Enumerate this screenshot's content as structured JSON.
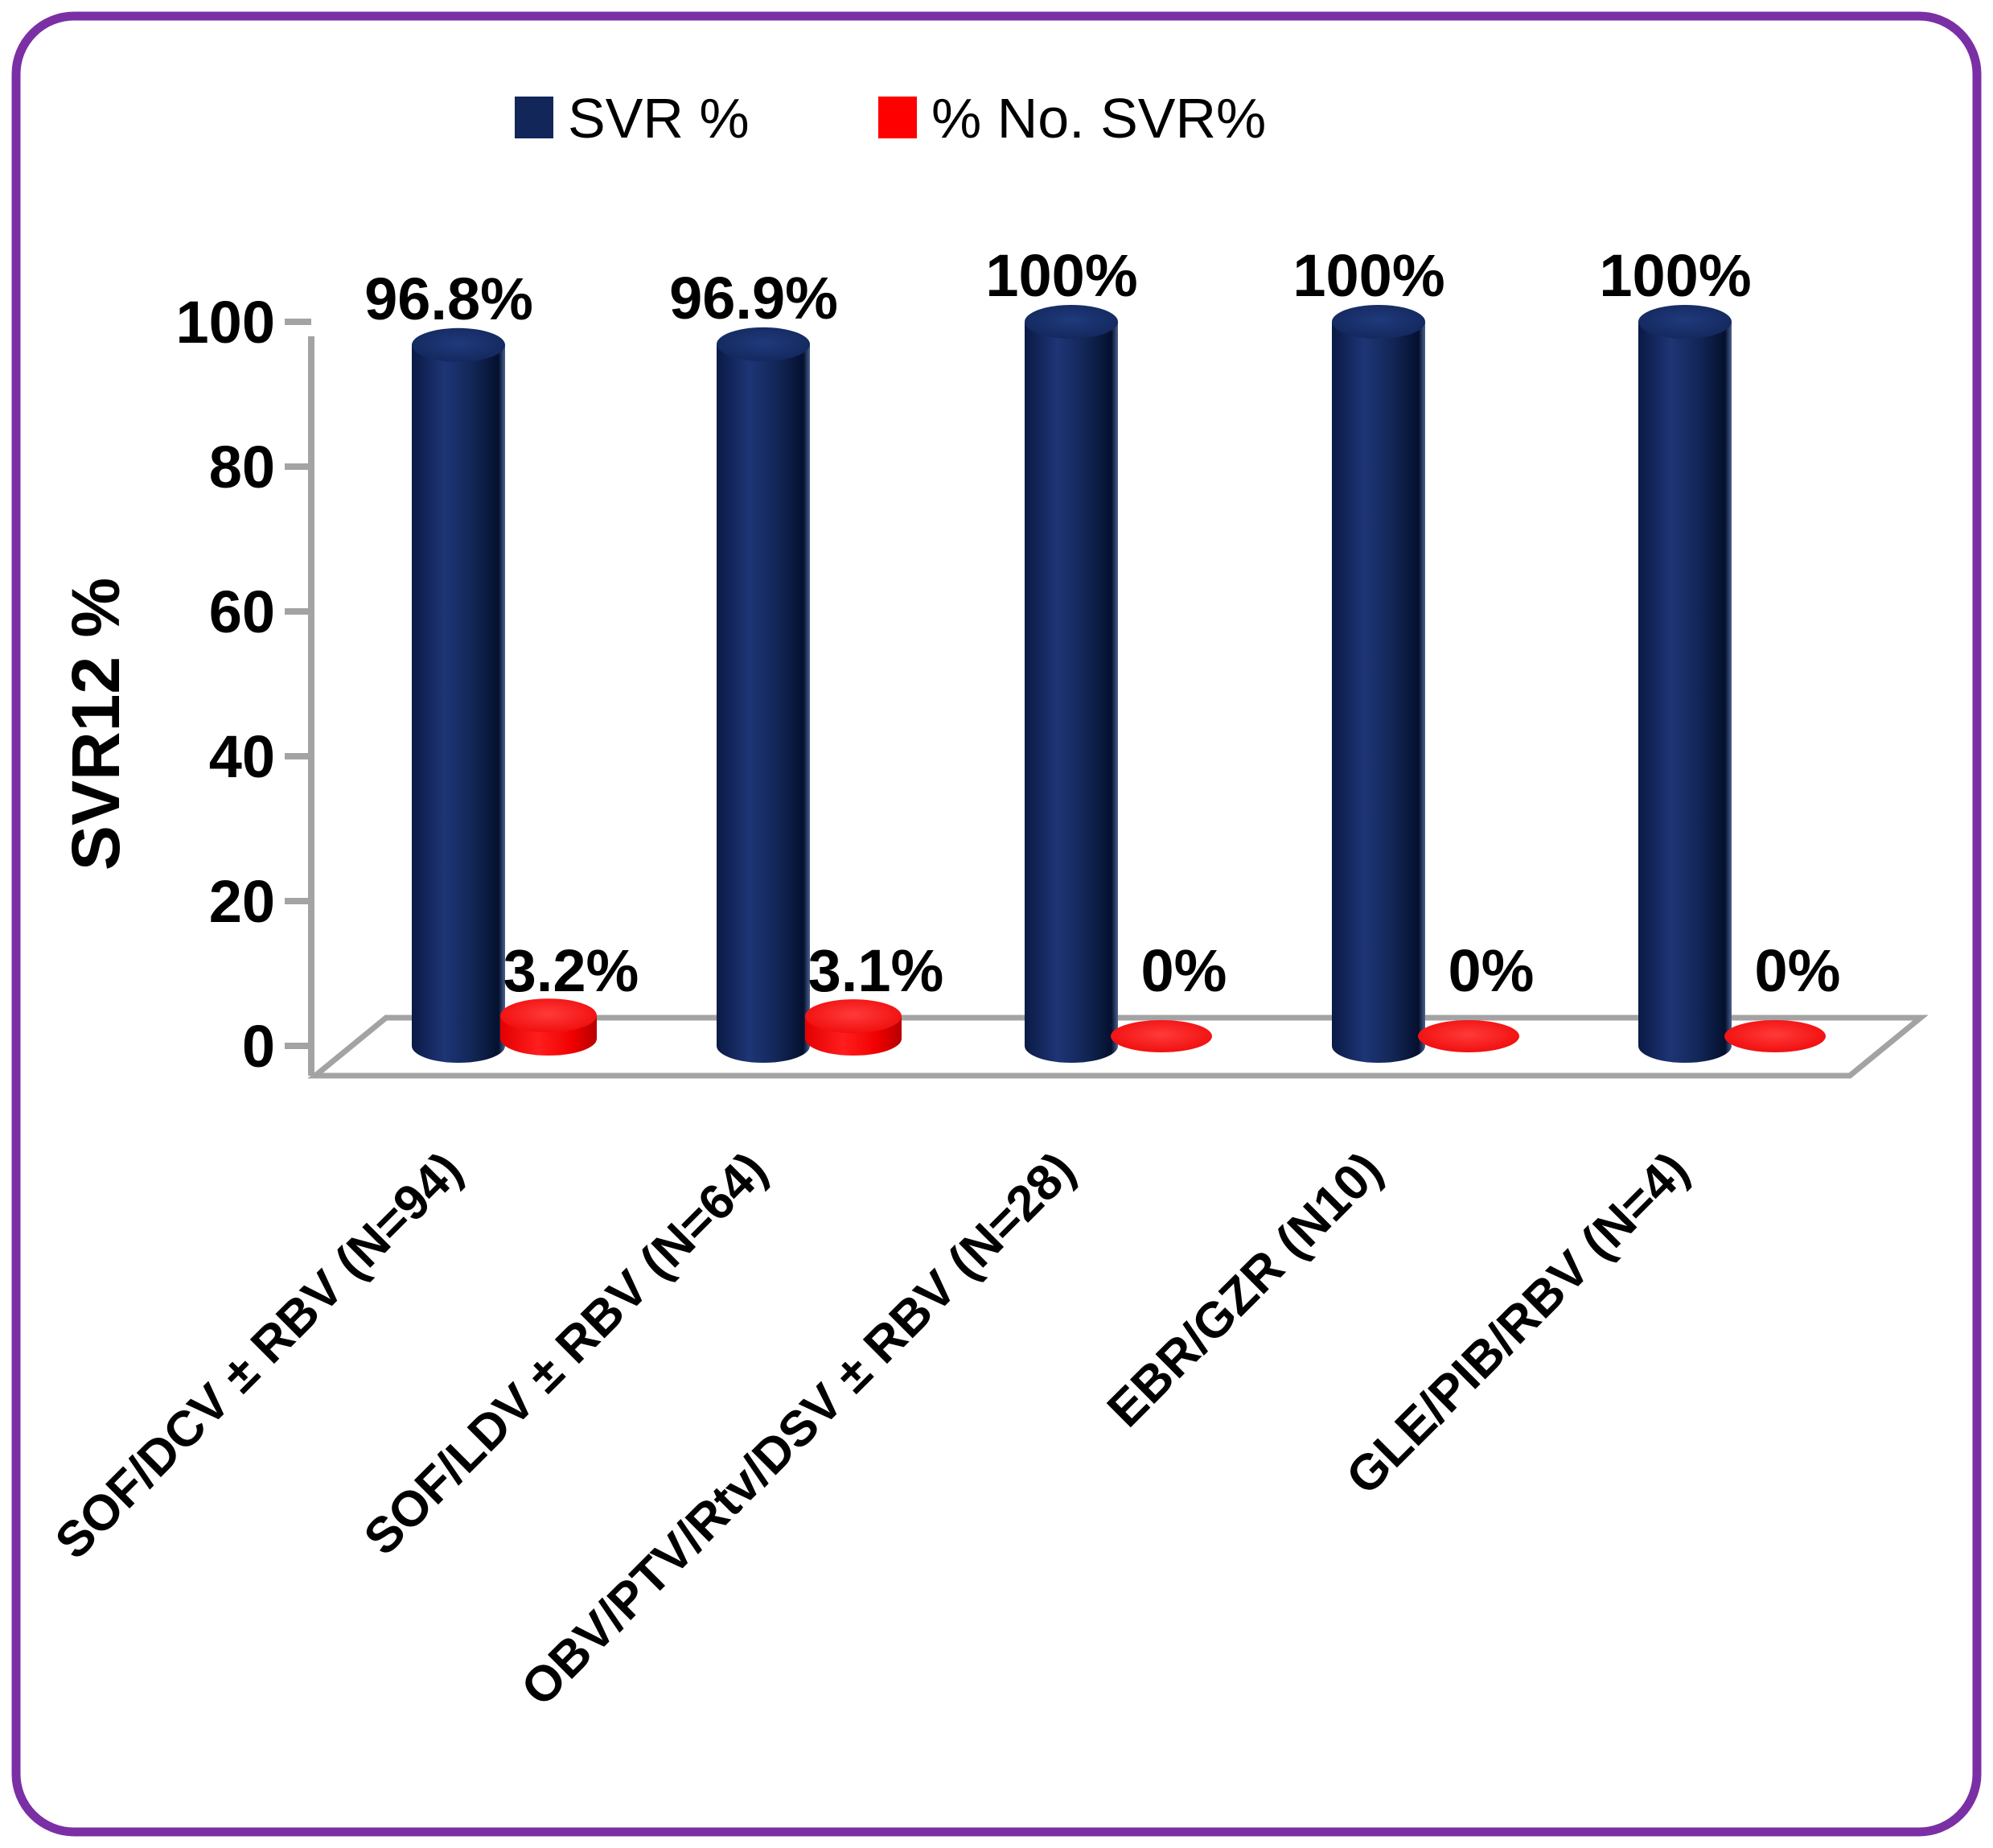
{
  "chart_data": {
    "type": "bar",
    "style": "3d-cylinder",
    "categories": [
      "SOF/DCV ± RBV (N=94)",
      "SOF/LDV ± RBV (N=64)",
      "OBV/PTV/Rtv/DSV ± RBV (N=28)",
      "EBR/GZR (N10)",
      "GLE/PIB/RBV (N=4)"
    ],
    "series": [
      {
        "name": "SVR %",
        "color": "#12265a",
        "values": [
          96.8,
          96.9,
          100,
          100,
          100
        ],
        "labels": [
          "96.8%",
          "96.9%",
          "100%",
          "100%",
          "100%"
        ]
      },
      {
        "name": "% No. SVR%",
        "color": "#fe0000",
        "values": [
          3.2,
          3.1,
          0,
          0,
          0
        ],
        "labels": [
          "3.2%",
          "3.1%",
          "0%",
          "0%",
          "0%"
        ]
      }
    ],
    "title": "",
    "xlabel": "",
    "ylabel": "SVR12 %",
    "ylim": [
      0,
      100
    ],
    "y_ticks": [
      0,
      20,
      40,
      60,
      80,
      100
    ],
    "grid": false,
    "legend_position": "top"
  },
  "legend": {
    "items": [
      {
        "label": "SVR %",
        "color": "#12265a"
      },
      {
        "label": "% No. SVR%",
        "color": "#fe0000"
      }
    ]
  },
  "axis": {
    "y_title": "SVR12 %",
    "y_tick_labels": [
      "0",
      "20",
      "40",
      "60",
      "80",
      "100"
    ]
  },
  "colors": {
    "bar_navy": "#12265a",
    "bar_navy_dark": "#071433",
    "bar_navy_light": "#1e3576",
    "bar_red": "#fe0000",
    "bar_red_dark": "#c00000",
    "bar_red_light": "#ff2d2d",
    "axis_gray": "#a3a3a3",
    "border_purple": "#7b2fa5",
    "text_black": "#000000"
  }
}
